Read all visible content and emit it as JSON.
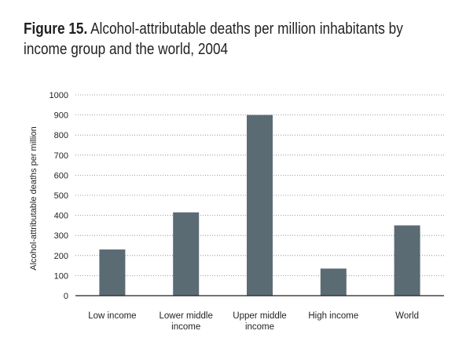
{
  "figure": {
    "number": "Figure 15.",
    "title_line1": "Alcohol-attributable deaths per million inhabitants by",
    "title_line2": "income group and the world, 2004"
  },
  "chart_data": {
    "type": "bar",
    "title": "Alcohol-attributable deaths per million inhabitants by income group and the world, 2004",
    "xlabel": "",
    "ylabel": "Alcohol-attributable deaths per million",
    "ylim": [
      0,
      1000
    ],
    "yticks": [
      0,
      100,
      200,
      300,
      400,
      500,
      600,
      700,
      800,
      900,
      1000
    ],
    "grid": true,
    "categories": [
      [
        "Low income"
      ],
      [
        "Lower middle",
        "income"
      ],
      [
        "Upper middle",
        "income"
      ],
      [
        "High income"
      ],
      [
        "World"
      ]
    ],
    "values": [
      230,
      415,
      900,
      135,
      350
    ],
    "colors": {
      "bar": "#5b6b74",
      "axis": "#231f20",
      "grid": "#808080"
    }
  }
}
